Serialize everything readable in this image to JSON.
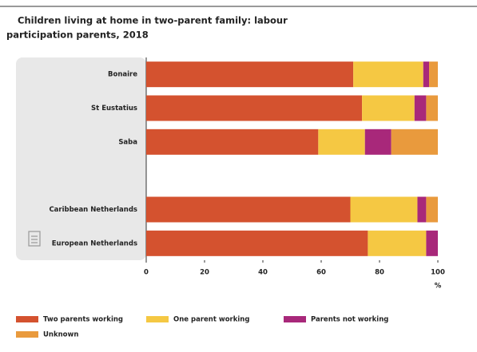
{
  "chart_data": {
    "type": "stacked-bar-horizontal",
    "title": "Children living at home in two-parent family: labour participation parents, 2018",
    "title_lines": [
      "Children living at home in two-parent family: labour",
      "participation parents, 2018"
    ],
    "categories": [
      "Bonaire",
      "St Eustatius",
      "Saba",
      null,
      "Caribbean Netherlands",
      "European Netherlands"
    ],
    "series": [
      {
        "name": "Two parents working",
        "color": "#d4522f",
        "values": [
          71,
          74,
          59,
          null,
          70,
          76
        ]
      },
      {
        "name": "One parent working",
        "color": "#f5c843",
        "values": [
          24,
          18,
          16,
          null,
          23,
          20
        ]
      },
      {
        "name": "Parents not working",
        "color": "#a8287a",
        "values": [
          2,
          4,
          9,
          null,
          3,
          4
        ]
      },
      {
        "name": "Unknown",
        "color": "#e99a3d",
        "values": [
          3,
          4,
          16,
          null,
          4,
          0
        ]
      }
    ],
    "xlim": [
      0,
      100
    ],
    "xticks": [
      0,
      20,
      40,
      60,
      80,
      100
    ],
    "x_label": "%"
  }
}
